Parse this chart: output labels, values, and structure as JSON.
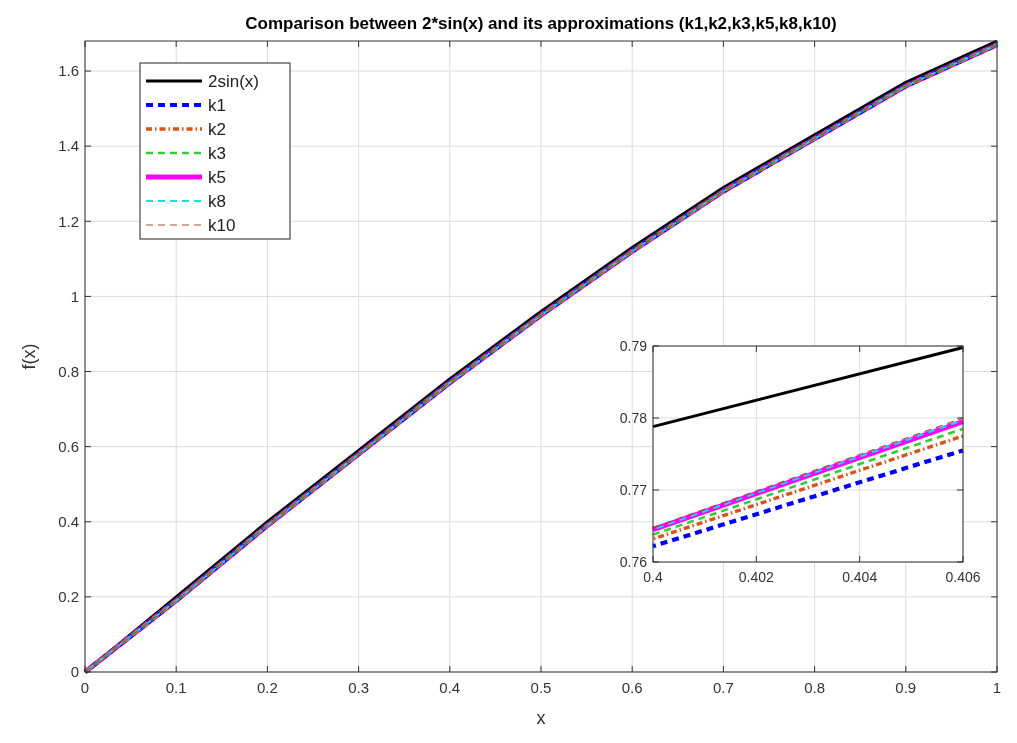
{
  "chart_data": [
    {
      "type": "line",
      "title": "Comparison between 2*sin(x) and its approximations (k1,k2,k3,k5,k8,k10)",
      "xlabel": "x",
      "ylabel": "f(x)",
      "x": [
        0,
        0.1,
        0.2,
        0.3,
        0.4,
        0.5,
        0.6,
        0.7,
        0.8,
        0.9,
        1
      ],
      "series": [
        {
          "name": "2sin(x)",
          "color": "#000000",
          "line_style": "solid",
          "values": [
            0,
            0.2,
            0.4,
            0.59,
            0.78,
            0.96,
            1.13,
            1.29,
            1.43,
            1.57,
            1.68
          ]
        },
        {
          "name": "k1",
          "color": "#0000ff",
          "line_style": "dashed",
          "values": [
            0,
            0.19,
            0.39,
            0.58,
            0.77,
            0.95,
            1.12,
            1.28,
            1.42,
            1.56,
            1.67
          ]
        },
        {
          "name": "k2",
          "color": "#d95319",
          "line_style": "dotted",
          "values": [
            0,
            0.19,
            0.39,
            0.58,
            0.77,
            0.95,
            1.12,
            1.28,
            1.42,
            1.56,
            1.67
          ]
        },
        {
          "name": "k3",
          "color": "#33cc33",
          "line_style": "dashed",
          "values": [
            0,
            0.19,
            0.39,
            0.58,
            0.77,
            0.95,
            1.12,
            1.28,
            1.42,
            1.56,
            1.67
          ]
        },
        {
          "name": "k5",
          "color": "#ff00ff",
          "line_style": "solid",
          "values": [
            0,
            0.19,
            0.39,
            0.58,
            0.77,
            0.95,
            1.12,
            1.28,
            1.42,
            1.56,
            1.67
          ]
        },
        {
          "name": "k8",
          "color": "#00e5e5",
          "line_style": "dashed",
          "values": [
            0,
            0.19,
            0.39,
            0.58,
            0.77,
            0.95,
            1.12,
            1.28,
            1.42,
            1.56,
            1.67
          ]
        },
        {
          "name": "k10",
          "color": "#a0522d",
          "line_style": "dashed",
          "values": [
            0,
            0.19,
            0.39,
            0.58,
            0.77,
            0.95,
            1.12,
            1.28,
            1.42,
            1.56,
            1.67
          ]
        }
      ],
      "xlim": [
        0,
        1
      ],
      "ylim": [
        0,
        1.68
      ],
      "xticks": [
        0,
        0.1,
        0.2,
        0.3,
        0.4,
        0.5,
        0.6,
        0.7,
        0.8,
        0.9,
        1
      ],
      "yticks": [
        0,
        0.2,
        0.4,
        0.6,
        0.8,
        1,
        1.2,
        1.4,
        1.6
      ],
      "grid": true,
      "legend": "top left"
    },
    {
      "type": "line",
      "x": [
        0.4,
        0.406
      ],
      "series": [
        {
          "color": "#000000",
          "line_style": "solid",
          "values": [
            0.7788,
            0.7898
          ]
        },
        {
          "color": "#0000ff",
          "line_style": "dashed",
          "values": [
            0.7622,
            0.7755
          ]
        },
        {
          "color": "#d95319",
          "line_style": "dotted",
          "values": [
            0.7632,
            0.7775
          ]
        },
        {
          "color": "#33cc33",
          "line_style": "dashed",
          "values": [
            0.7638,
            0.7785
          ]
        },
        {
          "color": "#ff00ff",
          "line_style": "solid",
          "values": [
            0.7645,
            0.7795
          ]
        },
        {
          "color": "#00e5e5",
          "line_style": "dashed",
          "values": [
            0.7645,
            0.7797
          ]
        },
        {
          "color": "#a0522d",
          "line_style": "dashed",
          "values": [
            0.7648,
            0.78
          ]
        }
      ],
      "xlim": [
        0.4,
        0.406
      ],
      "ylim": [
        0.76,
        0.79
      ],
      "xticks": [
        0.4,
        0.402,
        0.404,
        0.406
      ],
      "yticks": [
        0.76,
        0.77,
        0.78,
        0.79
      ],
      "grid": true
    }
  ]
}
